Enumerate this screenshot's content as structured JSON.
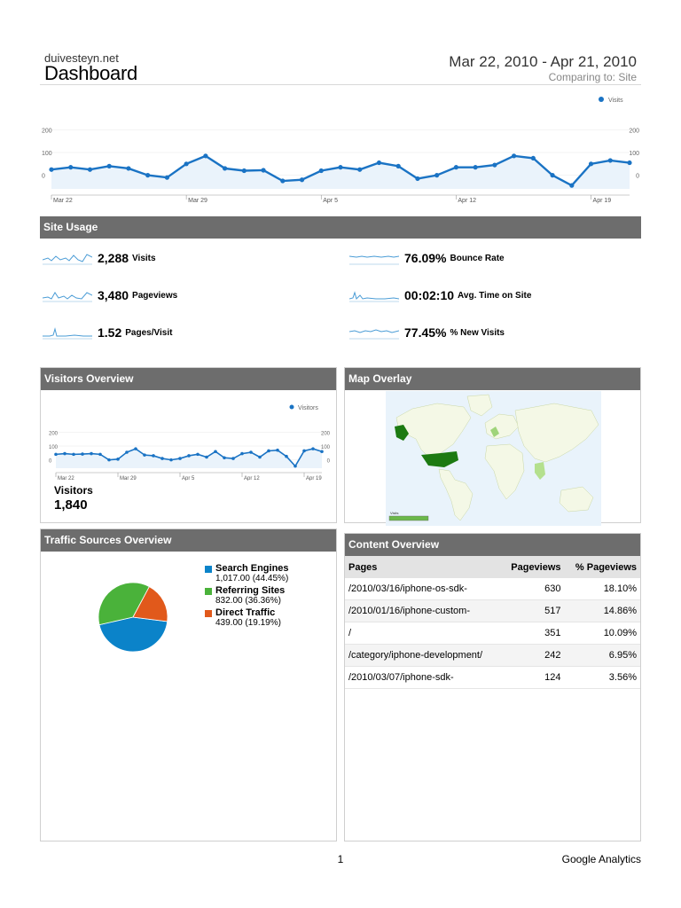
{
  "header": {
    "site": "duivesteyn.net",
    "title": "Dashboard",
    "date_range": "Mar 22, 2010 - Apr 21, 2010",
    "comparing": "Comparing to: Site"
  },
  "chart_data": [
    {
      "type": "line",
      "legend": "Visits",
      "x_tick_labels": [
        "Mar 22",
        "Mar 29",
        "Apr 5",
        "Apr 12",
        "Apr 19"
      ],
      "y_tick_labels": [
        "200",
        "100",
        "0"
      ],
      "ylim": [
        -60,
        260
      ],
      "color": "#1a73c4",
      "series": [
        {
          "name": "Visits",
          "values": [
            25,
            35,
            25,
            40,
            30,
            0,
            -10,
            50,
            85,
            30,
            20,
            22,
            -25,
            -20,
            20,
            35,
            25,
            55,
            40,
            -15,
            0,
            35,
            35,
            45,
            85,
            75,
            0,
            -45,
            50,
            65,
            55
          ]
        }
      ]
    },
    {
      "type": "line",
      "legend": "Visitors",
      "x_tick_labels": [
        "Mar 22",
        "Mar 29",
        "Apr 5",
        "Apr 12",
        "Apr 19"
      ],
      "y_tick_labels": [
        "200",
        "100",
        "0"
      ],
      "ylim": [
        -60,
        260
      ],
      "color": "#1a73c4",
      "series": [
        {
          "name": "Visitors",
          "values": [
            40,
            45,
            40,
            42,
            45,
            40,
            0,
            5,
            55,
            80,
            35,
            30,
            10,
            0,
            10,
            30,
            40,
            20,
            60,
            15,
            10,
            45,
            55,
            20,
            65,
            70,
            25,
            -45,
            65,
            80,
            60
          ]
        }
      ]
    },
    {
      "type": "pie",
      "legend_labels": [
        "Search Engines",
        "Referring Sites",
        "Direct Traffic"
      ],
      "values": [
        1017.0,
        832.0,
        439.0
      ],
      "value_labels": [
        "1,017.00 (44.45%)",
        "832.00 (36.36%)",
        "439.00 (19.19%)"
      ],
      "colors": [
        "#0b83c9",
        "#4ab23a",
        "#e1591b"
      ]
    }
  ],
  "site_usage": {
    "title": "Site Usage",
    "metrics_left": [
      {
        "value": "2,288",
        "label": "Visits"
      },
      {
        "value": "3,480",
        "label": "Pageviews"
      },
      {
        "value": "1.52",
        "label": "Pages/Visit"
      }
    ],
    "metrics_right": [
      {
        "value": "76.09%",
        "label": "Bounce Rate"
      },
      {
        "value": "00:02:10",
        "label": "Avg. Time on Site"
      },
      {
        "value": "77.45%",
        "label": "% New Visits"
      }
    ]
  },
  "visitors_overview": {
    "title": "Visitors Overview",
    "label": "Visitors",
    "value": "1,840"
  },
  "map_overlay": {
    "title": "Map Overlay",
    "legend_label": "Visits"
  },
  "traffic_sources": {
    "title": "Traffic Sources Overview"
  },
  "content_overview": {
    "title": "Content Overview",
    "columns": [
      "Pages",
      "Pageviews",
      "% Pageviews"
    ],
    "rows": [
      [
        "/2010/03/16/iphone-os-sdk-",
        "630",
        "18.10%"
      ],
      [
        "/2010/01/16/iphone-custom-",
        "517",
        "14.86%"
      ],
      [
        "/",
        "351",
        "10.09%"
      ],
      [
        "/category/iphone-development/",
        "242",
        "6.95%"
      ],
      [
        "/2010/03/07/iphone-sdk-",
        "124",
        "3.56%"
      ]
    ]
  },
  "footer": {
    "page": "1",
    "brand": "Google Analytics"
  }
}
